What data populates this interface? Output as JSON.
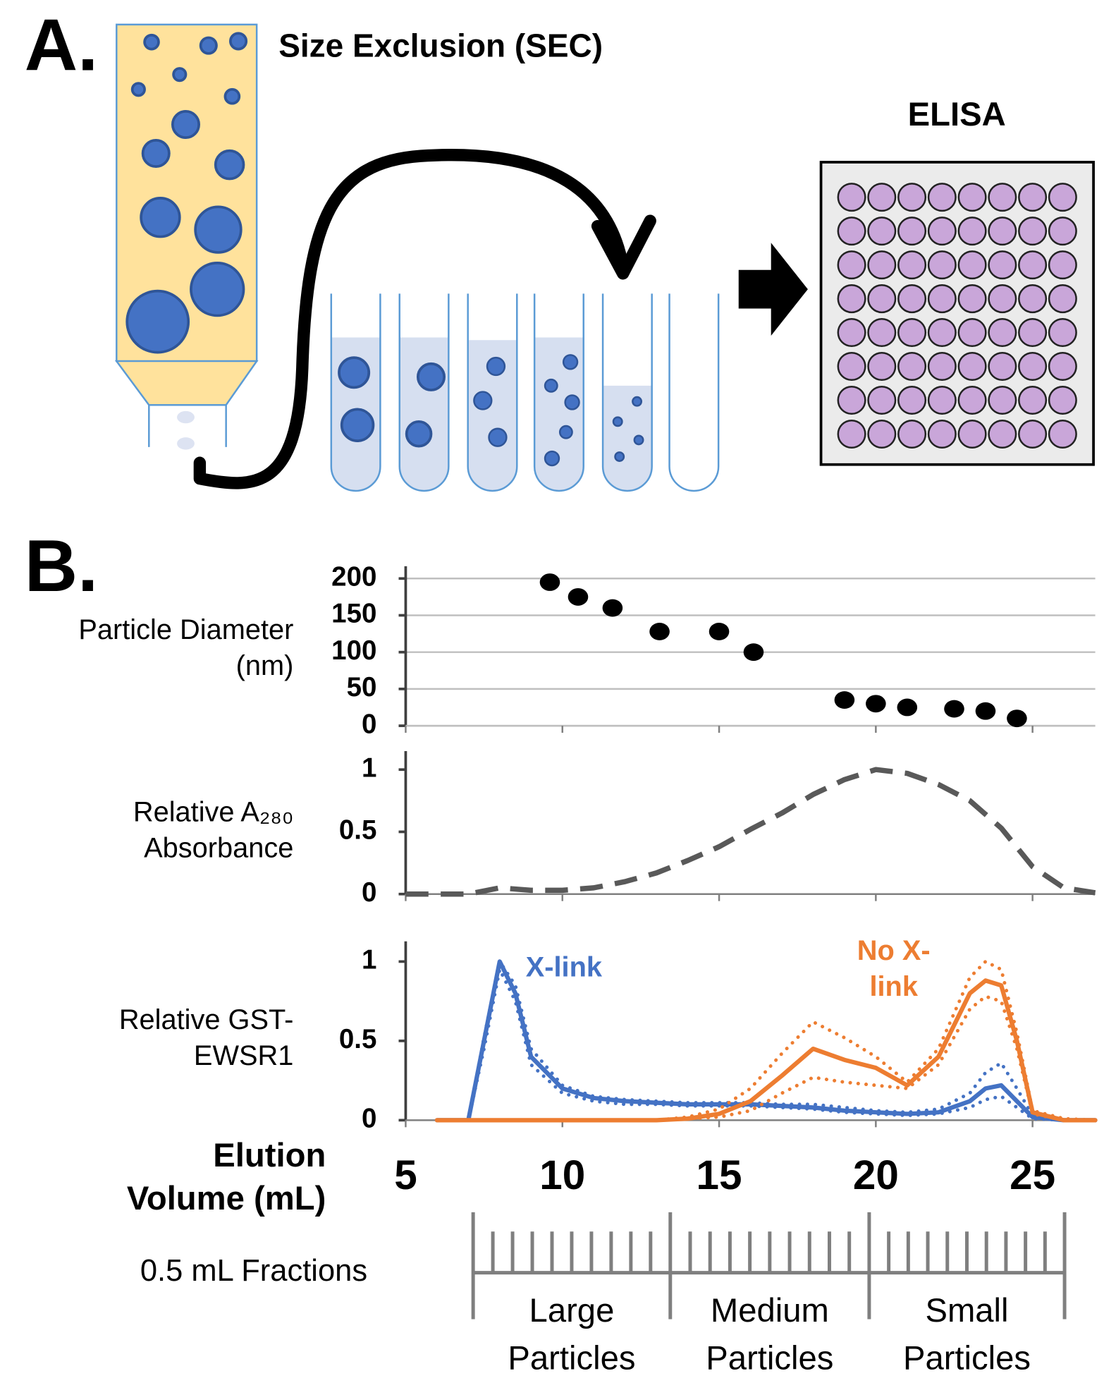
{
  "panel_a": {
    "label": "A.",
    "sec_title": "Size Exclusion (SEC)",
    "elisa_title": "ELISA"
  },
  "panel_b": {
    "label": "B."
  },
  "chart_data": [
    {
      "type": "scatter",
      "ylabel": "Particle Diameter (nm)",
      "x": [
        9.6,
        10.5,
        11.6,
        13.1,
        15.0,
        16.1,
        19.0,
        20.0,
        21.0,
        22.5,
        23.5,
        24.5
      ],
      "values": [
        195,
        175,
        160,
        128,
        128,
        100,
        35,
        30,
        25,
        23,
        20,
        10
      ],
      "color": "#000000",
      "xlim": [
        5,
        27
      ],
      "ylim": [
        0,
        200
      ],
      "yticks": [
        0,
        50,
        100,
        150,
        200
      ],
      "grid": true
    },
    {
      "type": "line",
      "ylabel": "Relative A₂₈₀ Absorbance",
      "x": [
        5,
        7,
        8,
        9,
        10,
        11,
        12,
        13,
        14,
        15,
        16,
        17,
        18,
        19,
        20,
        21,
        22,
        23,
        24,
        25,
        26,
        27
      ],
      "values": [
        0,
        0,
        0.05,
        0.03,
        0.03,
        0.05,
        0.1,
        0.17,
        0.27,
        0.38,
        0.52,
        0.65,
        0.8,
        0.92,
        1.0,
        0.97,
        0.88,
        0.75,
        0.53,
        0.22,
        0.05,
        0.01
      ],
      "color": "#595959",
      "dashed": true,
      "xlim": [
        5,
        27
      ],
      "ylim": [
        0,
        1.05
      ],
      "yticks": [
        0,
        0.5,
        1
      ],
      "grid": false
    },
    {
      "type": "band-line",
      "ylabel": "Relative GST-EWSR1",
      "xlabel": "Elution Volume (mL)",
      "x": [
        6,
        7,
        7.5,
        8,
        8.5,
        9,
        10,
        11,
        12,
        13,
        14,
        15,
        16,
        17,
        18,
        19,
        20,
        21,
        22,
        23,
        23.5,
        24,
        24.5,
        25,
        26,
        27
      ],
      "series": [
        {
          "name": "X-link",
          "color": "#4472c4",
          "values": [
            0,
            0,
            0.5,
            1.0,
            0.8,
            0.4,
            0.2,
            0.14,
            0.12,
            0.11,
            0.1,
            0.1,
            0.1,
            0.09,
            0.08,
            0.06,
            0.05,
            0.04,
            0.05,
            0.12,
            0.2,
            0.22,
            0.12,
            0.02,
            0,
            0
          ],
          "low": [
            0,
            0,
            0.45,
            0.95,
            0.75,
            0.35,
            0.17,
            0.12,
            0.1,
            0.1,
            0.09,
            0.09,
            0.09,
            0.08,
            0.07,
            0.05,
            0.04,
            0.03,
            0.04,
            0.08,
            0.13,
            0.15,
            0.08,
            0.01,
            0,
            0
          ],
          "high": [
            0,
            0,
            0.52,
            1.0,
            0.85,
            0.45,
            0.22,
            0.15,
            0.13,
            0.12,
            0.11,
            0.11,
            0.11,
            0.1,
            0.1,
            0.08,
            0.06,
            0.05,
            0.07,
            0.17,
            0.3,
            0.36,
            0.2,
            0.03,
            0,
            0
          ]
        },
        {
          "name": "No X-link",
          "color": "#ed7d31",
          "values": [
            0,
            0,
            0,
            0,
            0,
            0,
            0,
            0,
            0,
            0,
            0.01,
            0.04,
            0.12,
            0.28,
            0.45,
            0.38,
            0.33,
            0.22,
            0.4,
            0.8,
            0.88,
            0.85,
            0.5,
            0.05,
            0,
            0
          ],
          "low": [
            0,
            0,
            0,
            0,
            0,
            0,
            0,
            0,
            0,
            0,
            0.01,
            0.02,
            0.06,
            0.17,
            0.27,
            0.24,
            0.22,
            0.2,
            0.35,
            0.7,
            0.78,
            0.75,
            0.45,
            0.04,
            0,
            0
          ],
          "high": [
            0,
            0,
            0,
            0,
            0,
            0,
            0,
            0,
            0,
            0,
            0.02,
            0.07,
            0.2,
            0.42,
            0.62,
            0.52,
            0.4,
            0.24,
            0.45,
            0.9,
            1.0,
            0.95,
            0.55,
            0.06,
            0.01,
            0
          ]
        }
      ],
      "xlim": [
        5,
        27
      ],
      "ylim": [
        0,
        1.05
      ],
      "xticks": [
        5,
        10,
        15,
        20,
        25
      ],
      "yticks": [
        0,
        0.5,
        1
      ],
      "grid": false
    }
  ],
  "fraction_scale": {
    "label": "0.5 mL Fractions",
    "groups": [
      "Large Particles",
      "Medium Particles",
      "Small Particles"
    ]
  }
}
